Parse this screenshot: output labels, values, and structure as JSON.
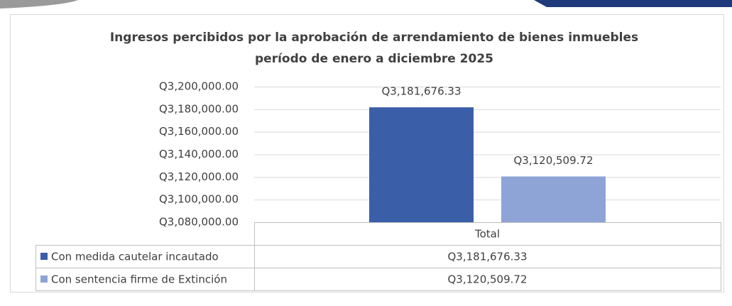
{
  "chart_data": {
    "type": "bar",
    "title": [
      "Ingresos percibidos por la aprobación de arrendamiento de bienes inmuebles",
      "período de enero a diciembre 2025"
    ],
    "categories": [
      "Total"
    ],
    "series": [
      {
        "name": "Con medida cautelar incautado",
        "color": "#3a5fa8",
        "values": [
          3181676.33
        ],
        "value_labels": [
          "Q3,181,676.33"
        ]
      },
      {
        "name": "Con sentencia firme de Extinción",
        "color": "#8fa4d6",
        "values": [
          3120509.72
        ],
        "value_labels": [
          "Q3,120,509.72"
        ]
      }
    ],
    "ylim": [
      3080000,
      3200000
    ],
    "yticks": [
      {
        "value": 3080000,
        "label": "Q3,080,000.00"
      },
      {
        "value": 3100000,
        "label": "Q3,100,000.00"
      },
      {
        "value": 3120000,
        "label": "Q3,120,000.00"
      },
      {
        "value": 3140000,
        "label": "Q3,140,000.00"
      },
      {
        "value": 3160000,
        "label": "Q3,160,000.00"
      },
      {
        "value": 3180000,
        "label": "Q3,180,000.00"
      },
      {
        "value": 3200000,
        "label": "Q3,200,000.00"
      }
    ],
    "grid": true
  }
}
